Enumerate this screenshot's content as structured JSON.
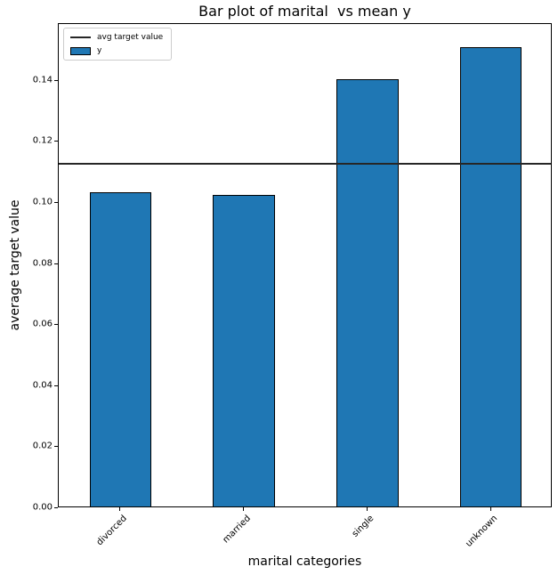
{
  "chart_data": {
    "type": "bar",
    "title": "Bar plot of marital  vs mean y",
    "xlabel": "marital categories",
    "ylabel": "average target value",
    "categories": [
      "divorced",
      "married",
      "single",
      "unknown"
    ],
    "series": [
      {
        "name": "y",
        "values": [
          0.103,
          0.102,
          0.14,
          0.1505
        ]
      }
    ],
    "avg_line": {
      "label": "avg target value",
      "value": 0.113,
      "color": "#262626"
    },
    "ylim": [
      0,
      0.1586
    ],
    "yticks": [
      0.0,
      0.02,
      0.04,
      0.06,
      0.08,
      0.1,
      0.12,
      0.14
    ],
    "ytick_labels": [
      "0.00",
      "0.02",
      "0.04",
      "0.06",
      "0.08",
      "0.10",
      "0.12",
      "0.14"
    ],
    "xtick_rotation": 45,
    "grid": false,
    "bar_color": "#1f77b4",
    "bar_edge_color": "#000000",
    "bar_width_fraction": 0.5,
    "legend": {
      "position": "upper left",
      "entries": [
        {
          "label": "avg target value",
          "type": "line",
          "color": "#262626"
        },
        {
          "label": "y",
          "type": "patch",
          "color": "#1f77b4"
        }
      ]
    }
  }
}
